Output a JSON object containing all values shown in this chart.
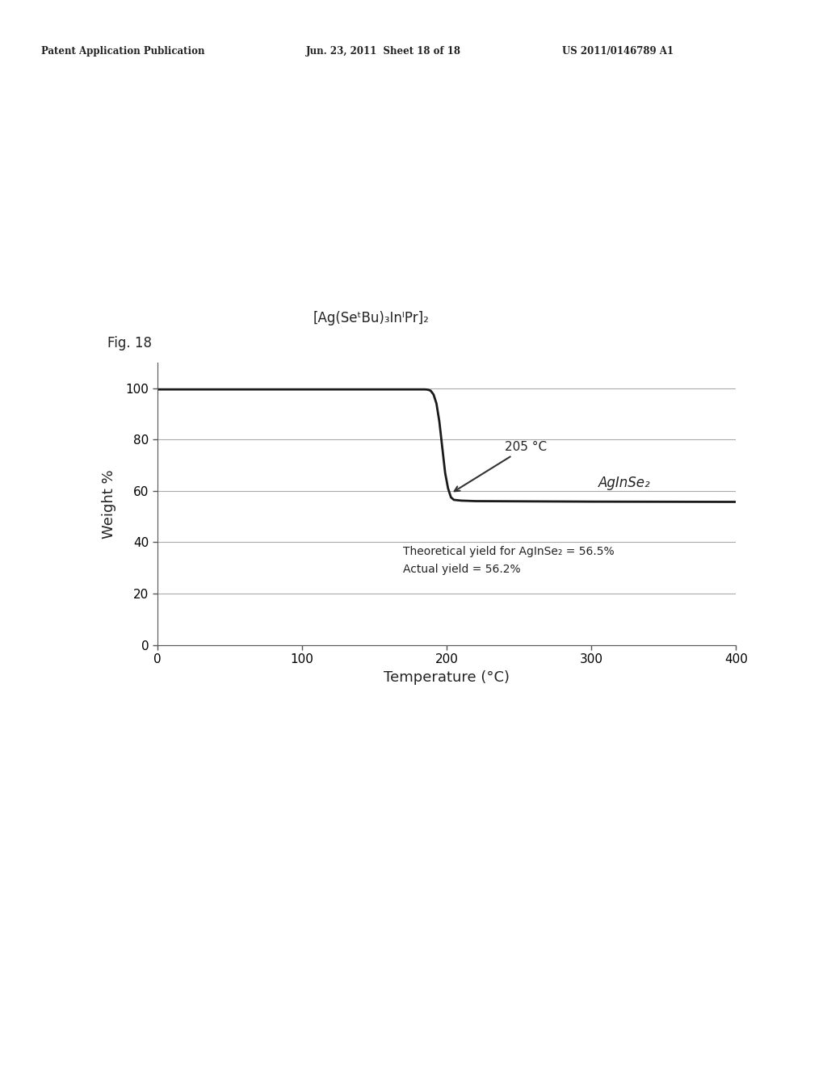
{
  "header_left": "Patent Application Publication",
  "header_mid": "Jun. 23, 2011  Sheet 18 of 18",
  "header_right": "US 2011/0146789 A1",
  "fig_label": "Fig. 18",
  "title_formula": "[Ag(SeᵗBu)₃InᴵPr]₂",
  "xlabel": "Temperature (°C)",
  "ylabel": "Weight %",
  "xlim": [
    0,
    400
  ],
  "ylim": [
    0,
    110
  ],
  "yticks": [
    0,
    20,
    40,
    60,
    80,
    100
  ],
  "xticks": [
    0,
    100,
    200,
    300,
    400
  ],
  "annotation_temp": "205 °C",
  "annotation_product": "AgInSe₂",
  "annotation_yield1": "Theoretical yield for AgInSe₂ = 56.5%",
  "annotation_yield2": "Actual yield = 56.2%",
  "curve_color": "#1a1a1a",
  "background_color": "#ffffff",
  "line_width": 2.0,
  "x_curve": [
    0,
    185,
    187,
    189,
    191,
    193,
    195,
    197,
    199,
    201,
    203,
    205,
    210,
    220,
    300,
    400
  ],
  "y_curve": [
    99.5,
    99.5,
    99.4,
    99.0,
    97.5,
    94.0,
    87.0,
    77.0,
    67.0,
    61.0,
    57.5,
    56.5,
    56.2,
    56.0,
    55.8,
    55.7
  ]
}
